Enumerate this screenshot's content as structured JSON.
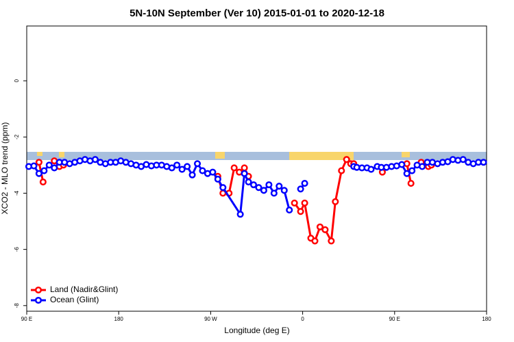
{
  "chart_data": {
    "type": "line",
    "title": "5N-10N September (Ver 10)   2015-01-01 to 2020-12-18",
    "x_label": "Longitude (deg E)",
    "y_label": "XCO2 - MLO trend (ppm)",
    "xlim": [
      90,
      540
    ],
    "xticks": [
      {
        "value": 90,
        "label": "90 E"
      },
      {
        "value": 180,
        "label": "180"
      },
      {
        "value": 270,
        "label": "90 W"
      },
      {
        "value": 360,
        "label": "0"
      },
      {
        "value": 450,
        "label": "90 E"
      },
      {
        "value": 540,
        "label": "180"
      }
    ],
    "ylim": [
      -8.2,
      1.95
    ],
    "yticks": [
      0,
      -2,
      -4,
      -6,
      -8
    ],
    "legend": "bottom-left",
    "series": [
      {
        "name": "Land (Nadir&Glint)",
        "color": "#ff0000",
        "x": [
          102,
          106,
          111,
          117,
          122,
          126,
          270,
          277,
          282,
          288,
          293,
          298,
          303,
          307,
          330,
          352,
          358,
          362,
          368,
          372,
          377,
          382,
          388,
          392,
          398,
          403,
          407,
          410,
          425,
          438,
          450,
          462,
          466,
          470,
          476,
          483,
          486
        ],
        "values": [
          -2.9,
          -3.6,
          null,
          -2.85,
          -3.05,
          -3.0,
          null,
          -3.4,
          -4.0,
          -4.0,
          -3.1,
          -3.25,
          -3.1,
          -3.4,
          null,
          -4.35,
          -4.65,
          -4.35,
          -5.6,
          -5.7,
          -5.2,
          -5.3,
          -5.7,
          -4.3,
          -3.2,
          -2.8,
          -2.95,
          -2.95,
          null,
          -3.25,
          null,
          -2.95,
          -3.65,
          null,
          -2.9,
          -3.05,
          -3.0
        ]
      },
      {
        "name": "Ocean (Glint)",
        "color": "#0000ff",
        "x": [
          92,
          97,
          102,
          107,
          112,
          117,
          122,
          127,
          132,
          137,
          142,
          147,
          152,
          157,
          162,
          167,
          172,
          177,
          182,
          187,
          192,
          197,
          202,
          207,
          212,
          217,
          222,
          227,
          232,
          237,
          242,
          247,
          252,
          257,
          262,
          267,
          272,
          277,
          282,
          299,
          303,
          307,
          312,
          317,
          322,
          327,
          332,
          337,
          342,
          347,
          352,
          358,
          362,
          385,
          410,
          413,
          418,
          423,
          427,
          433,
          437,
          442,
          447,
          452,
          457,
          462,
          467,
          472,
          477,
          482,
          487,
          492,
          497,
          502,
          507,
          512,
          517,
          522,
          527,
          532,
          537
        ],
        "values": [
          -3.05,
          -3.03,
          -3.3,
          -3.2,
          -3.0,
          -3.1,
          -2.9,
          -2.9,
          -2.95,
          -2.9,
          -2.85,
          -2.8,
          -2.85,
          -2.8,
          -2.9,
          -2.95,
          -2.9,
          -2.9,
          -2.85,
          -2.9,
          -2.95,
          -3.0,
          -3.05,
          -2.98,
          -3.03,
          -3.0,
          -3.0,
          -3.05,
          -3.1,
          -3.0,
          -3.15,
          -3.05,
          -3.35,
          -2.95,
          -3.2,
          -3.3,
          -3.25,
          -3.5,
          -3.8,
          -4.75,
          -3.3,
          -3.6,
          -3.7,
          -3.8,
          -3.9,
          -3.7,
          -4.0,
          -3.75,
          -3.9,
          -4.6,
          null,
          -3.85,
          -3.65,
          null,
          -3.05,
          -3.08,
          -3.1,
          -3.1,
          -3.15,
          -3.05,
          -3.08,
          -3.08,
          -3.05,
          -3.03,
          -2.98,
          -3.3,
          -3.2,
          -3.0,
          -3.05,
          -2.9,
          -2.9,
          -2.95,
          -2.9,
          -2.88,
          -2.8,
          -2.83,
          -2.8,
          -2.9,
          -2.95,
          -2.9,
          -2.9
        ]
      }
    ]
  }
}
